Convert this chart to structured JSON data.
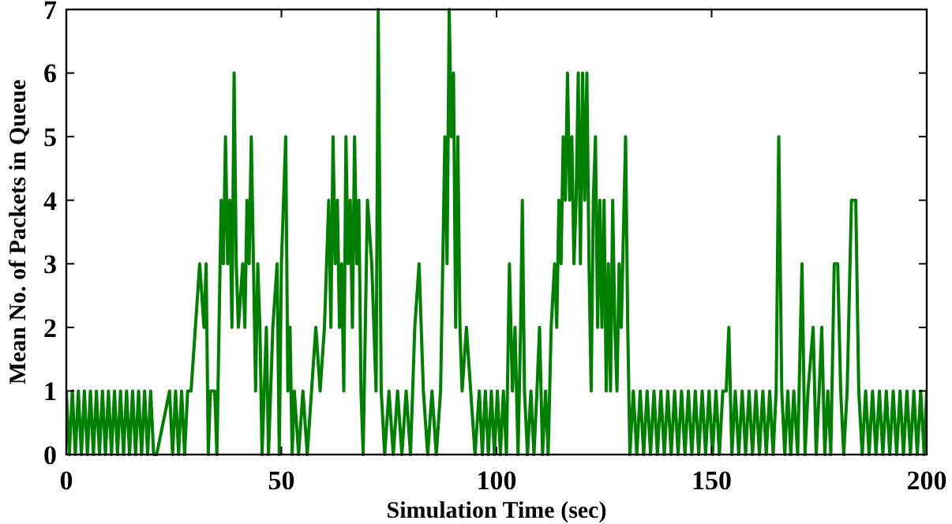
{
  "chart_data": {
    "type": "line",
    "xlabel": "Simulation Time (sec)",
    "ylabel": "Mean No. of Packets in Queue",
    "xlim": [
      0,
      200
    ],
    "ylim": [
      0,
      7
    ],
    "xticks": [
      0,
      50,
      100,
      150,
      200
    ],
    "yticks": [
      0,
      1,
      2,
      3,
      4,
      5,
      6,
      7
    ],
    "grid": false,
    "marker": "none",
    "line_style": "solid",
    "series": [
      {
        "color": "#008000",
        "x": [
          0,
          0.7,
          1.4,
          2.1,
          2.8,
          3.5,
          4.2,
          4.9,
          5.6,
          6.3,
          7,
          7.7,
          8.4,
          9.1,
          9.8,
          10.5,
          11.2,
          11.9,
          12.6,
          13.3,
          14,
          14.7,
          15.4,
          16.1,
          16.8,
          17.5,
          18.2,
          18.9,
          19.6,
          20.3,
          21,
          24,
          24.7,
          25.4,
          26.1,
          26.8,
          27.5,
          28.2,
          29,
          30,
          31,
          32,
          32.5,
          33,
          33.5,
          34.5,
          35,
          35.5,
          36,
          36.5,
          37,
          37.5,
          38,
          38.5,
          39,
          39.5,
          40,
          41,
          41.5,
          42,
          42.5,
          43,
          43.5,
          44,
          44.5,
          45,
          45.5,
          46,
          46.5,
          47,
          48,
          49,
          49.5,
          50,
          51,
          51.5,
          52,
          52.5,
          53,
          54,
          55,
          56,
          57,
          58,
          59,
          60,
          61,
          61.5,
          62,
          62.5,
          63,
          63.5,
          64,
          64.5,
          65,
          65.5,
          66,
          66.5,
          67,
          67.5,
          68,
          68.5,
          69,
          70,
          71,
          71.5,
          72,
          72.5,
          73.2,
          74,
          75,
          76,
          77,
          78,
          79,
          80,
          81,
          82,
          83,
          84,
          85,
          86,
          87,
          88,
          88.5,
          89,
          89.5,
          90,
          90.5,
          91,
          91.5,
          92,
          93,
          94,
          95,
          96,
          96.7,
          97.4,
          98.1,
          98.8,
          99.5,
          100.2,
          100.9,
          101.6,
          102.3,
          103,
          103.7,
          104.3,
          105,
          105.6,
          106,
          106.5,
          107.2,
          108,
          108.7,
          109.4,
          110,
          110.7,
          111.4,
          112,
          112.7,
          113.5,
          114,
          114.5,
          115,
          115.5,
          116,
          116.5,
          117,
          117.5,
          118,
          118.5,
          119,
          119.5,
          120,
          120.5,
          121,
          121.5,
          122,
          122.5,
          123,
          123.5,
          124,
          124.5,
          125,
          125.5,
          126,
          126.5,
          127,
          127.5,
          128,
          128.5,
          129,
          130,
          130.5,
          131,
          131.8,
          132.6,
          133.4,
          134.2,
          135,
          135.8,
          136.6,
          137.4,
          138.2,
          139,
          139.8,
          140.6,
          141.4,
          142.2,
          143,
          143.8,
          144.6,
          145.4,
          146.2,
          147,
          147.8,
          148.6,
          149.4,
          150.2,
          151,
          151.8,
          152.6,
          153.4,
          154,
          154.7,
          155.5,
          156.3,
          157.1,
          157.9,
          158.7,
          159.5,
          160.3,
          161.1,
          161.9,
          162.7,
          163.5,
          164.3,
          165,
          165.6,
          166.3,
          167,
          167.7,
          168.4,
          169.1,
          170,
          171,
          171.7,
          172.4,
          173.6,
          174.3,
          175,
          175.6,
          176.3,
          177,
          177.7,
          178.5,
          179.3,
          180,
          180.7,
          181.5,
          182.5,
          183.5,
          184.2,
          185,
          185.8,
          186.6,
          187.4,
          188.2,
          189,
          189.8,
          190.6,
          191.4,
          192.2,
          193,
          193.8,
          194.6,
          195.4,
          196.2,
          197,
          197.8,
          198.6,
          199.4,
          200
        ],
        "values": [
          1,
          0,
          1,
          0,
          1,
          0,
          1,
          0,
          1,
          0,
          1,
          0,
          1,
          0,
          1,
          0,
          1,
          0,
          1,
          0,
          1,
          0,
          1,
          0,
          1,
          0,
          1,
          0,
          1,
          0,
          0,
          1,
          0,
          1,
          0,
          1,
          0,
          1,
          1,
          2,
          3,
          2,
          3,
          0,
          1,
          1,
          0,
          2,
          4,
          3,
          5,
          3,
          4,
          2,
          6,
          3,
          2,
          3,
          2,
          4,
          3,
          5,
          3,
          1,
          3,
          2,
          0,
          1,
          2,
          0,
          2,
          3,
          0,
          3,
          5,
          1,
          2,
          0,
          1,
          0,
          1,
          0,
          1,
          2,
          1,
          2,
          4,
          2,
          5,
          3,
          4,
          2,
          3,
          1,
          5,
          3,
          4,
          2,
          5,
          3,
          4,
          1,
          0,
          4,
          3,
          2,
          1,
          7,
          1,
          0,
          1,
          0,
          1,
          0,
          1,
          0,
          2,
          3,
          1,
          0,
          1,
          0,
          1,
          5,
          3,
          7,
          5,
          6,
          2,
          5,
          2,
          1,
          2,
          1,
          0,
          1,
          0,
          1,
          0,
          1,
          0,
          1,
          0,
          1,
          0,
          3,
          1,
          2,
          0,
          2,
          4,
          1,
          0,
          1,
          0,
          1,
          2,
          0,
          1,
          0,
          2,
          3,
          2,
          4,
          3,
          5,
          4,
          6,
          4,
          5,
          3,
          4,
          6,
          3,
          6,
          4,
          6,
          3,
          1,
          4,
          5,
          2,
          4,
          2,
          4,
          1,
          3,
          1,
          4,
          2,
          1,
          3,
          2,
          5,
          2,
          0,
          1,
          0,
          1,
          0,
          1,
          0,
          1,
          0,
          1,
          0,
          1,
          0,
          1,
          0,
          1,
          0,
          1,
          0,
          1,
          0,
          1,
          0,
          1,
          0,
          1,
          0,
          1,
          1,
          2,
          0,
          1,
          0,
          1,
          0,
          1,
          0,
          1,
          0,
          1,
          0,
          1,
          0,
          1,
          5,
          1,
          0,
          1,
          0,
          1,
          0,
          3,
          0,
          1,
          2,
          0,
          1,
          2,
          0,
          1,
          0,
          3,
          3,
          1,
          0,
          1,
          4,
          4,
          1,
          0,
          1,
          0,
          1,
          0,
          1,
          0,
          1,
          0,
          1,
          0,
          1,
          0,
          1,
          0,
          1,
          0,
          1,
          0,
          1
        ]
      }
    ]
  }
}
